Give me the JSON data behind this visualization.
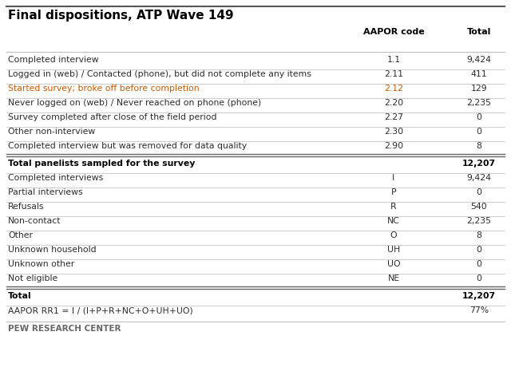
{
  "title": "Final dispositions, ATP Wave 149",
  "col_headers": [
    "AAPOR code",
    "Total"
  ],
  "rows": [
    {
      "label": "Completed interview",
      "code": "1.1",
      "total": "9,424",
      "bold": false,
      "orange": false,
      "sep_above": "none"
    },
    {
      "label": "Logged in (web) / Contacted (phone), but did not complete any items",
      "code": "2.11",
      "total": "411",
      "bold": false,
      "orange": false,
      "sep_above": "thin"
    },
    {
      "label": "Started survey; broke off before completion",
      "code": "2.12",
      "total": "129",
      "bold": false,
      "orange": true,
      "sep_above": "thin"
    },
    {
      "label": "Never logged on (web) / Never reached on phone (phone)",
      "code": "2.20",
      "total": "2,235",
      "bold": false,
      "orange": false,
      "sep_above": "thin"
    },
    {
      "label": "Survey completed after close of the field period",
      "code": "2.27",
      "total": "0",
      "bold": false,
      "orange": false,
      "sep_above": "thin"
    },
    {
      "label": "Other non-interview",
      "code": "2.30",
      "total": "0",
      "bold": false,
      "orange": false,
      "sep_above": "thin"
    },
    {
      "label": "Completed interview but was removed for data quality",
      "code": "2.90",
      "total": "8",
      "bold": false,
      "orange": false,
      "sep_above": "thin"
    },
    {
      "label": "Total panelists sampled for the survey",
      "code": "",
      "total": "12,207",
      "bold": true,
      "orange": false,
      "sep_above": "double"
    },
    {
      "label": "Completed interviews",
      "code": "I",
      "total": "9,424",
      "bold": false,
      "orange": false,
      "sep_above": "thin"
    },
    {
      "label": "Partial interviews",
      "code": "P",
      "total": "0",
      "bold": false,
      "orange": false,
      "sep_above": "thin"
    },
    {
      "label": "Refusals",
      "code": "R",
      "total": "540",
      "bold": false,
      "orange": false,
      "sep_above": "thin"
    },
    {
      "label": "Non-contact",
      "code": "NC",
      "total": "2,235",
      "bold": false,
      "orange": false,
      "sep_above": "thin"
    },
    {
      "label": "Other",
      "code": "O",
      "total": "8",
      "bold": false,
      "orange": false,
      "sep_above": "thin"
    },
    {
      "label": "Unknown household",
      "code": "UH",
      "total": "0",
      "bold": false,
      "orange": false,
      "sep_above": "thin"
    },
    {
      "label": "Unknown other",
      "code": "UO",
      "total": "0",
      "bold": false,
      "orange": false,
      "sep_above": "thin"
    },
    {
      "label": "Not eligible",
      "code": "NE",
      "total": "0",
      "bold": false,
      "orange": false,
      "sep_above": "thin"
    },
    {
      "label": "Total",
      "code": "",
      "total": "12,207",
      "bold": true,
      "orange": false,
      "sep_above": "double"
    },
    {
      "label": "AAPOR RR1 = I / (I+P+R+NC+O+UH+UO)",
      "code": "",
      "total": "77%",
      "bold": false,
      "orange": false,
      "sep_above": "thin"
    }
  ],
  "footer": "PEW RESEARCH CENTER",
  "bg_color": "#ffffff",
  "title_color": "#000000",
  "normal_color": "#2d2d2d",
  "bold_color": "#000000",
  "orange_color": "#c55a00",
  "header_color": "#000000",
  "thin_sep_color": "#bbbbbb",
  "double_sep_color": "#666666",
  "top_rule_color": "#555555",
  "footer_color": "#666666"
}
